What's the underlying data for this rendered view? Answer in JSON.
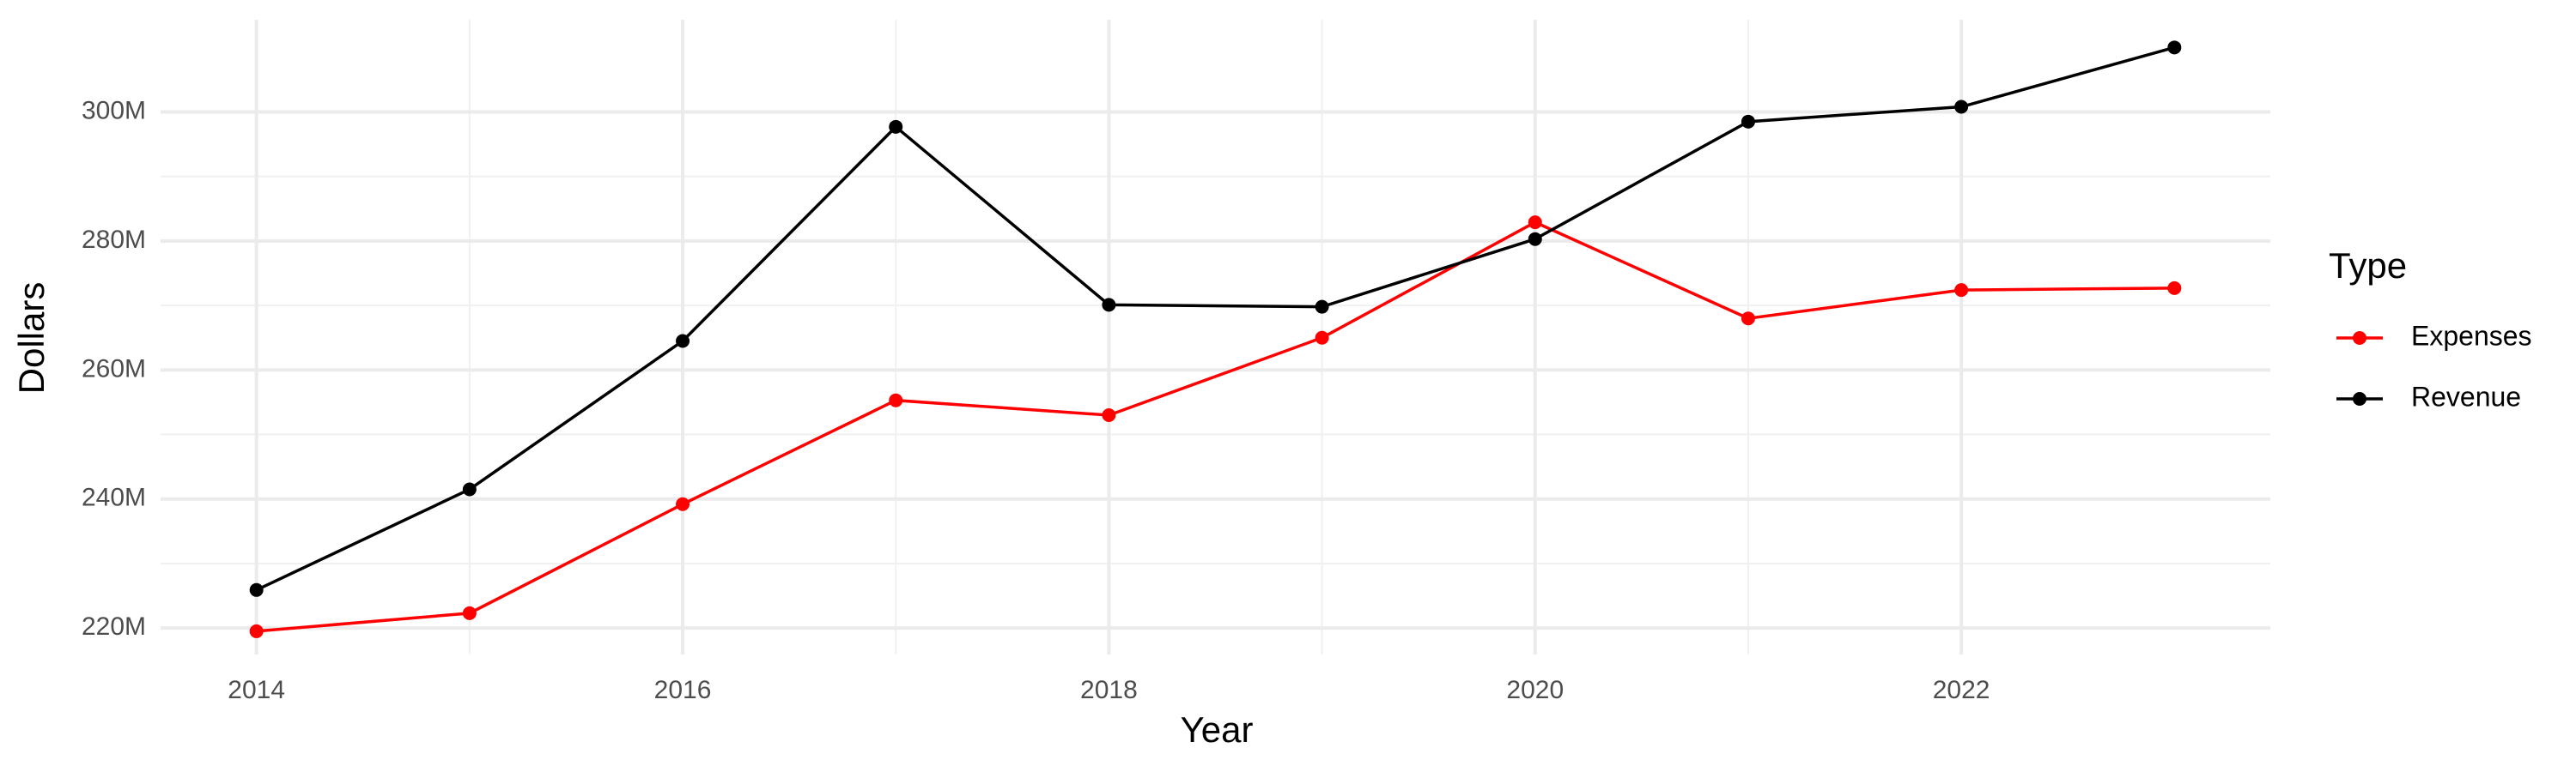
{
  "chart_data": {
    "type": "line",
    "x_label": "Year",
    "y_label": "Dollars",
    "legend_title": "Type",
    "legend_position": "right",
    "grid": true,
    "x": [
      2014,
      2015,
      2016,
      2017,
      2018,
      2019,
      2020,
      2021,
      2022,
      2023
    ],
    "series": [
      {
        "name": "Expenses",
        "color": "#ff0000",
        "values": [
          219500000,
          222300000,
          239200000,
          255300000,
          253000000,
          265000000,
          282900000,
          268000000,
          272400000,
          272700000
        ]
      },
      {
        "name": "Revenue",
        "color": "#000000",
        "values": [
          225900000,
          241500000,
          264500000,
          297700000,
          270100000,
          269800000,
          280300000,
          298500000,
          300800000,
          310000000
        ]
      }
    ],
    "xlim": [
      2013.55,
      2023.45
    ],
    "xticks": [
      2014,
      2016,
      2018,
      2020,
      2022
    ],
    "ylim": [
      215900000,
      314300000
    ],
    "yticks": [
      {
        "value": 220000000,
        "label": "220M"
      },
      {
        "value": 240000000,
        "label": "240M"
      },
      {
        "value": 260000000,
        "label": "260M"
      },
      {
        "value": 280000000,
        "label": "280M"
      },
      {
        "value": 300000000,
        "label": "300M"
      }
    ]
  }
}
